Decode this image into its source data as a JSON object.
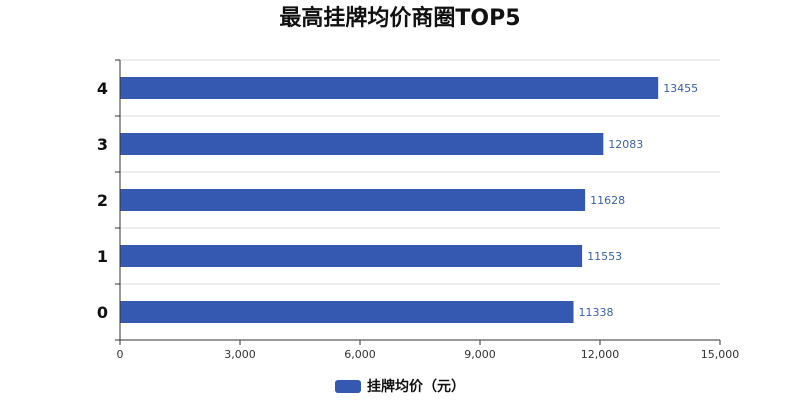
{
  "chart_data": {
    "type": "bar",
    "orientation": "horizontal",
    "title": "最高挂牌均价商圈TOP5",
    "categories": [
      "0",
      "1",
      "2",
      "3",
      "4"
    ],
    "series": [
      {
        "name": "挂牌均价（元）",
        "values": [
          11338,
          11553,
          11628,
          12083,
          13455
        ],
        "color": "#3558b0"
      }
    ],
    "xlim": [
      0,
      15000
    ],
    "xticks": [
      0,
      3000,
      6000,
      9000,
      12000,
      15000
    ],
    "xtick_labels": [
      "0",
      "3,000",
      "6,000",
      "9,000",
      "12,000",
      "15,000"
    ],
    "xlabel": "",
    "ylabel": "",
    "grid": "vertical-categories-horizontal-lines",
    "legend_position": "bottom"
  }
}
